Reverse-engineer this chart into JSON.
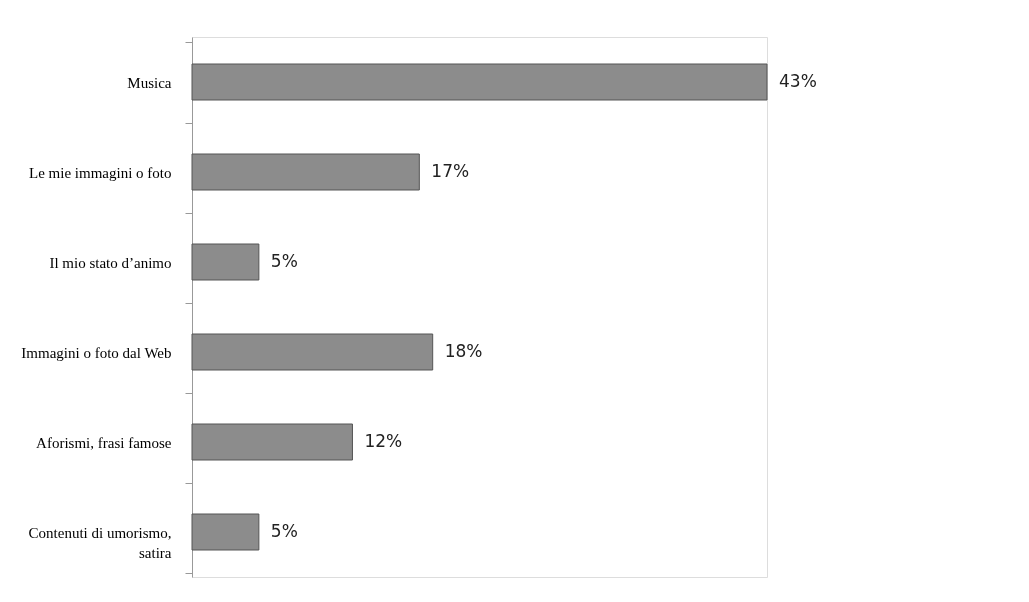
{
  "chart_data": {
    "type": "bar",
    "orientation": "horizontal",
    "categories": [
      "Musica",
      "Le mie immagini o foto",
      "Il mio stato d’animo",
      "Immagini o foto dal Web",
      "Aforismi, frasi famose",
      "Contenuti di umorismo, satira"
    ],
    "values": [
      43,
      17,
      5,
      18,
      12,
      5
    ],
    "value_labels": [
      "43%",
      "17%",
      "5%",
      "18%",
      "12%",
      "5%"
    ],
    "color": "#8c8c8c",
    "grid": false
  }
}
